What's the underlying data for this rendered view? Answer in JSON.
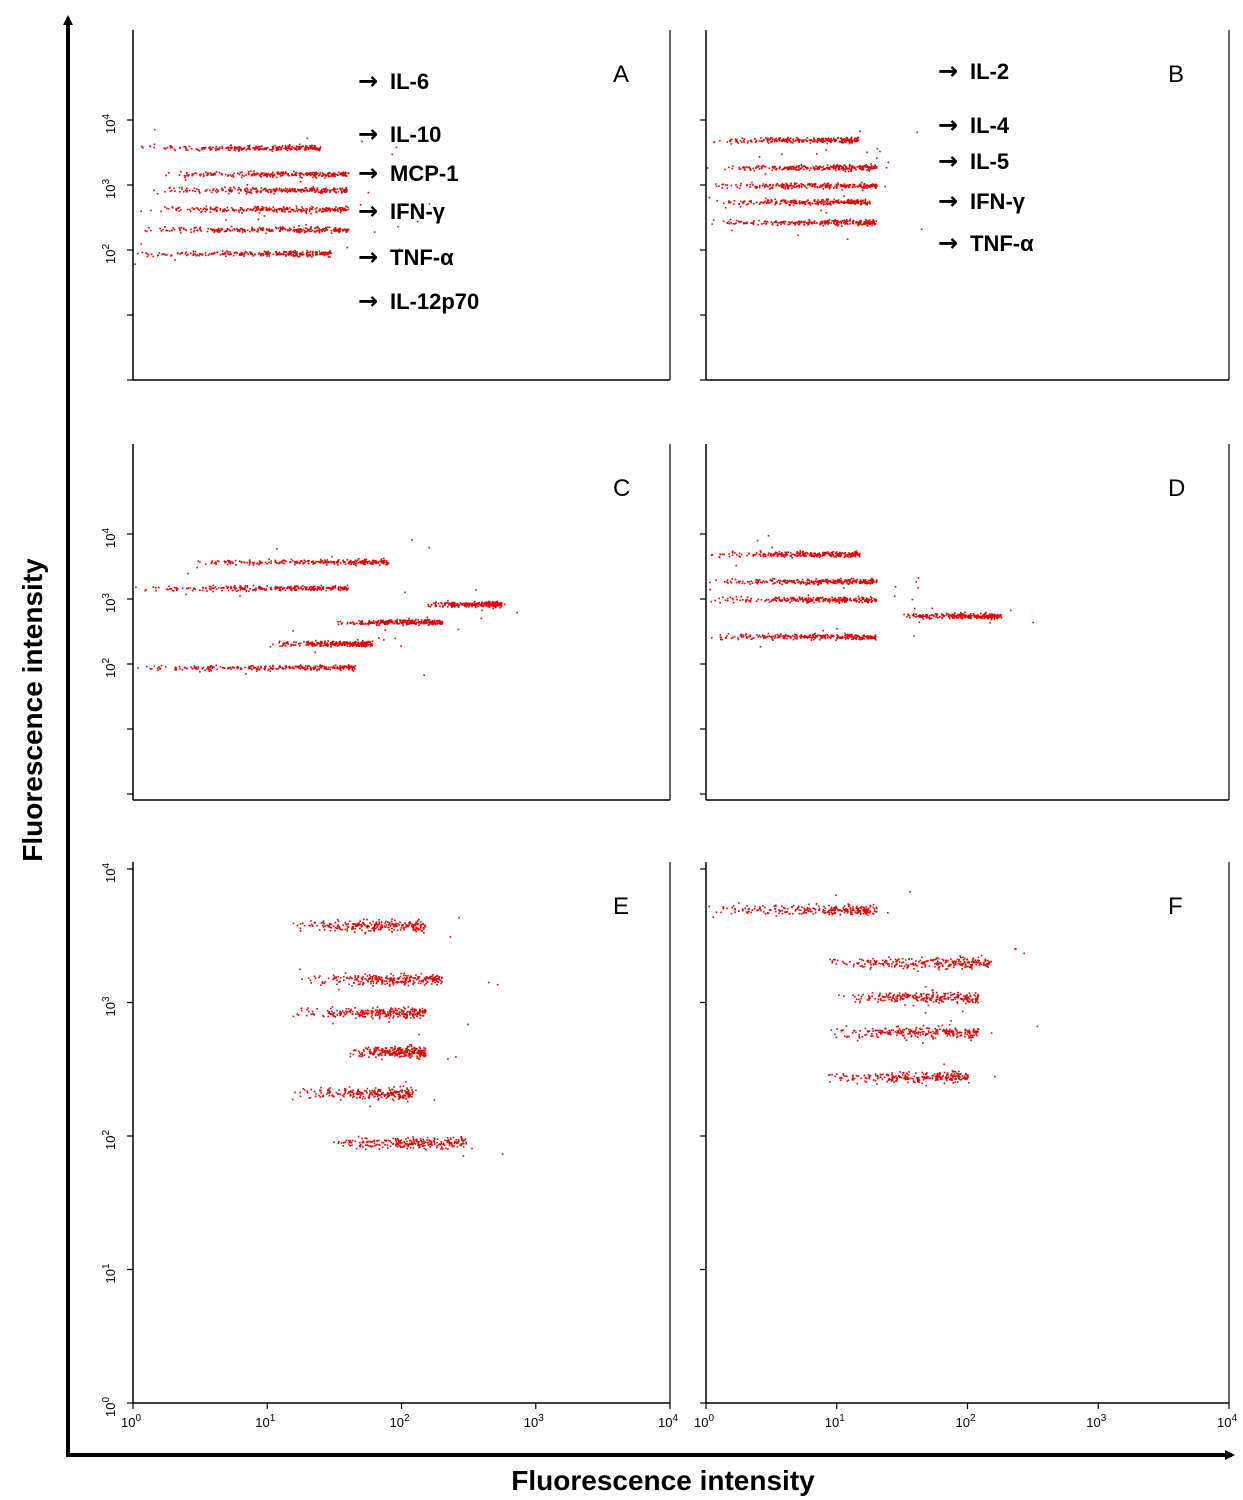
{
  "figure": {
    "x_axis_label": "Fluorescence intensity",
    "y_axis_label": "Fluorescence intensity",
    "point_color": "#e00000"
  },
  "chart_data": [
    {
      "type": "scatter",
      "panel": "A",
      "x_scale": "log",
      "y_scale": "log",
      "xlim": [
        1,
        10000
      ],
      "ylim": [
        1,
        10000
      ],
      "y_tick_labels": [
        "10^2",
        "10^3",
        "10^4"
      ],
      "annotations": [
        "IL-6",
        "IL-10",
        "MCP-1",
        "IFN-γ",
        "TNF-α",
        "IL-12p70"
      ],
      "clusters": [
        {
          "label": "IL-6",
          "y": 3800,
          "x_range": [
            1,
            25
          ]
        },
        {
          "label": "IL-10",
          "y": 1500,
          "x_range": [
            1.5,
            40
          ]
        },
        {
          "label": "MCP-1",
          "y": 850,
          "x_range": [
            1.2,
            40
          ]
        },
        {
          "label": "IFN-γ",
          "y": 430,
          "x_range": [
            1,
            40
          ]
        },
        {
          "label": "TNF-α",
          "y": 210,
          "x_range": [
            1,
            40
          ]
        },
        {
          "label": "IL-12p70",
          "y": 90,
          "x_range": [
            1,
            30
          ]
        }
      ]
    },
    {
      "type": "scatter",
      "panel": "B",
      "x_scale": "log",
      "y_scale": "log",
      "xlim": [
        1,
        10000
      ],
      "ylim": [
        1,
        10000
      ],
      "annotations": [
        "IL-2",
        "IL-4",
        "IL-5",
        "IFN-γ",
        "TNF-α"
      ],
      "clusters": [
        {
          "label": "IL-2",
          "y": 5000,
          "x_range": [
            1,
            15
          ]
        },
        {
          "label": "IL-4",
          "y": 1900,
          "x_range": [
            1,
            20
          ]
        },
        {
          "label": "IL-5",
          "y": 1000,
          "x_range": [
            1,
            20
          ]
        },
        {
          "label": "IFN-γ",
          "y": 560,
          "x_range": [
            1,
            18
          ]
        },
        {
          "label": "TNF-α",
          "y": 270,
          "x_range": [
            1,
            20
          ]
        }
      ]
    },
    {
      "type": "scatter",
      "panel": "C",
      "x_scale": "log",
      "y_scale": "log",
      "xlim": [
        1,
        10000
      ],
      "ylim": [
        1,
        10000
      ],
      "y_tick_labels": [
        "10^2",
        "10^3",
        "10^4"
      ],
      "clusters": [
        {
          "y": 3800,
          "x_range": [
            2.5,
            80
          ]
        },
        {
          "y": 1500,
          "x_range": [
            1,
            40
          ]
        },
        {
          "y": 850,
          "x_range": [
            150,
            550
          ]
        },
        {
          "y": 450,
          "x_range": [
            30,
            200
          ]
        },
        {
          "y": 210,
          "x_range": [
            10,
            60
          ]
        },
        {
          "y": 90,
          "x_range": [
            1,
            45
          ]
        }
      ]
    },
    {
      "type": "scatter",
      "panel": "D",
      "x_scale": "log",
      "y_scale": "log",
      "xlim": [
        1,
        10000
      ],
      "ylim": [
        1,
        10000
      ],
      "clusters": [
        {
          "y": 5000,
          "x_range": [
            1,
            15
          ]
        },
        {
          "y": 1900,
          "x_range": [
            1,
            20
          ]
        },
        {
          "y": 1000,
          "x_range": [
            1,
            20
          ]
        },
        {
          "y": 560,
          "x_range": [
            30,
            180
          ]
        },
        {
          "y": 270,
          "x_range": [
            1,
            20
          ]
        }
      ]
    },
    {
      "type": "scatter",
      "panel": "E",
      "x_scale": "log",
      "y_scale": "log",
      "xlim": [
        1,
        10000
      ],
      "ylim": [
        1,
        10000
      ],
      "x_tick_labels": [
        "10^0",
        "10^1",
        "10^2",
        "10^3",
        "10^4"
      ],
      "y_tick_labels": [
        "10^0",
        "10^1",
        "10^2",
        "10^3",
        "10^4"
      ],
      "clusters": [
        {
          "y": 3800,
          "x_range": [
            15,
            150
          ]
        },
        {
          "y": 1500,
          "x_range": [
            15,
            200
          ]
        },
        {
          "y": 850,
          "x_range": [
            15,
            150
          ]
        },
        {
          "y": 430,
          "x_range": [
            40,
            150
          ]
        },
        {
          "y": 210,
          "x_range": [
            15,
            120
          ]
        },
        {
          "y": 90,
          "x_range": [
            25,
            300
          ]
        }
      ]
    },
    {
      "type": "scatter",
      "panel": "F",
      "x_scale": "log",
      "y_scale": "log",
      "xlim": [
        1,
        10000
      ],
      "ylim": [
        1,
        10000
      ],
      "x_tick_labels": [
        "10^0",
        "10^1",
        "10^2",
        "10^3",
        "10^4"
      ],
      "clusters": [
        {
          "y": 5000,
          "x_range": [
            1,
            20
          ]
        },
        {
          "y": 2000,
          "x_range": [
            8,
            150
          ]
        },
        {
          "y": 1100,
          "x_range": [
            10,
            120
          ]
        },
        {
          "y": 600,
          "x_range": [
            8,
            120
          ]
        },
        {
          "y": 280,
          "x_range": [
            8,
            100
          ]
        }
      ]
    }
  ]
}
